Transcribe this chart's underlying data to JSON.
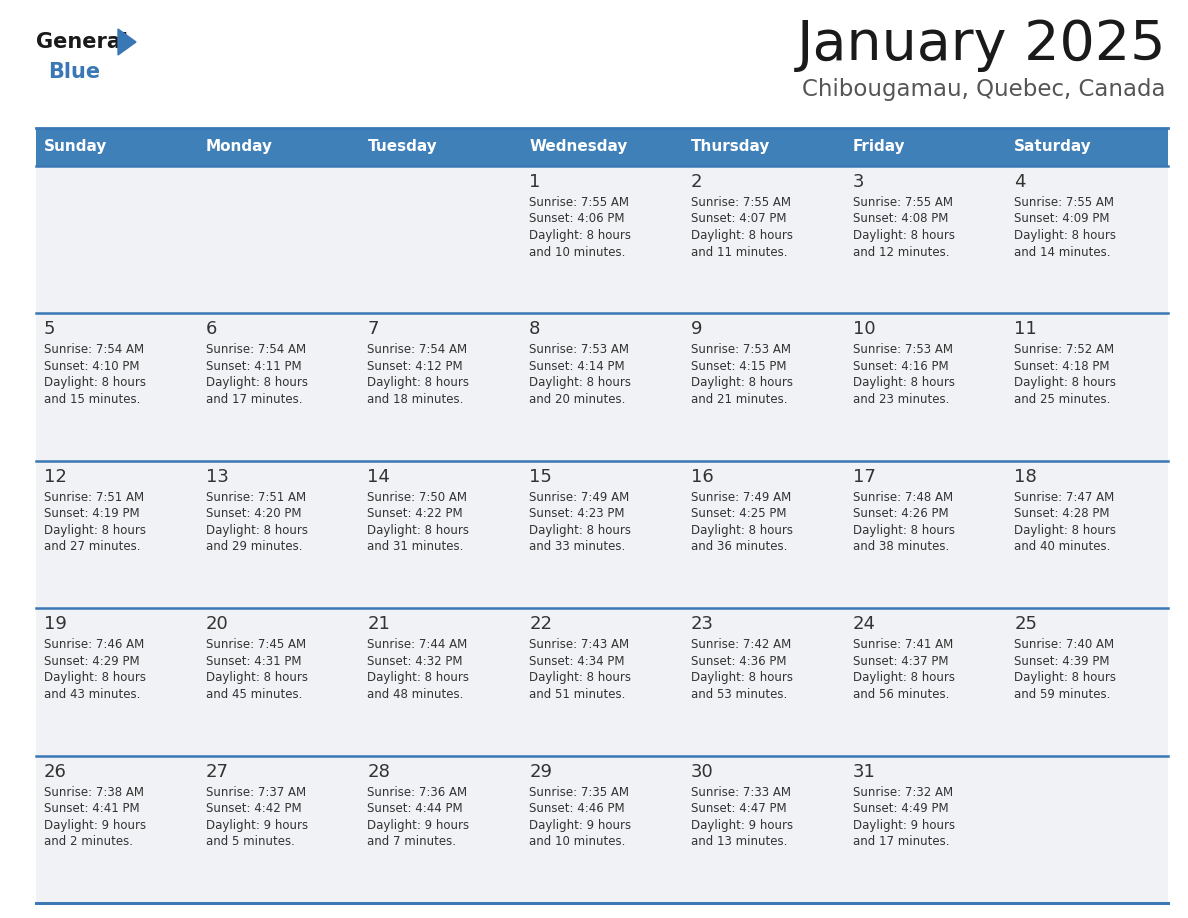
{
  "title": "January 2025",
  "subtitle": "Chibougamau, Quebec, Canada",
  "days_of_week": [
    "Sunday",
    "Monday",
    "Tuesday",
    "Wednesday",
    "Thursday",
    "Friday",
    "Saturday"
  ],
  "header_bg": "#4080b8",
  "header_text": "#ffffff",
  "cell_bg_filled": "#f0f2f5",
  "cell_bg_empty": "#ffffff",
  "border_color": "#3a78b5",
  "text_color": "#333333",
  "title_color": "#1a1a1a",
  "subtitle_color": "#555555",
  "logo_general_color": "#1a1a1a",
  "logo_blue_color": "#3a78b5",
  "logo_triangle_color": "#3a78b5",
  "calendar_data": [
    [
      null,
      null,
      null,
      {
        "day": 1,
        "sunrise": "7:55 AM",
        "sunset": "4:06 PM",
        "daylight": "8 hours and 10 minutes"
      },
      {
        "day": 2,
        "sunrise": "7:55 AM",
        "sunset": "4:07 PM",
        "daylight": "8 hours and 11 minutes"
      },
      {
        "day": 3,
        "sunrise": "7:55 AM",
        "sunset": "4:08 PM",
        "daylight": "8 hours and 12 minutes"
      },
      {
        "day": 4,
        "sunrise": "7:55 AM",
        "sunset": "4:09 PM",
        "daylight": "8 hours and 14 minutes"
      }
    ],
    [
      {
        "day": 5,
        "sunrise": "7:54 AM",
        "sunset": "4:10 PM",
        "daylight": "8 hours and 15 minutes"
      },
      {
        "day": 6,
        "sunrise": "7:54 AM",
        "sunset": "4:11 PM",
        "daylight": "8 hours and 17 minutes"
      },
      {
        "day": 7,
        "sunrise": "7:54 AM",
        "sunset": "4:12 PM",
        "daylight": "8 hours and 18 minutes"
      },
      {
        "day": 8,
        "sunrise": "7:53 AM",
        "sunset": "4:14 PM",
        "daylight": "8 hours and 20 minutes"
      },
      {
        "day": 9,
        "sunrise": "7:53 AM",
        "sunset": "4:15 PM",
        "daylight": "8 hours and 21 minutes"
      },
      {
        "day": 10,
        "sunrise": "7:53 AM",
        "sunset": "4:16 PM",
        "daylight": "8 hours and 23 minutes"
      },
      {
        "day": 11,
        "sunrise": "7:52 AM",
        "sunset": "4:18 PM",
        "daylight": "8 hours and 25 minutes"
      }
    ],
    [
      {
        "day": 12,
        "sunrise": "7:51 AM",
        "sunset": "4:19 PM",
        "daylight": "8 hours and 27 minutes"
      },
      {
        "day": 13,
        "sunrise": "7:51 AM",
        "sunset": "4:20 PM",
        "daylight": "8 hours and 29 minutes"
      },
      {
        "day": 14,
        "sunrise": "7:50 AM",
        "sunset": "4:22 PM",
        "daylight": "8 hours and 31 minutes"
      },
      {
        "day": 15,
        "sunrise": "7:49 AM",
        "sunset": "4:23 PM",
        "daylight": "8 hours and 33 minutes"
      },
      {
        "day": 16,
        "sunrise": "7:49 AM",
        "sunset": "4:25 PM",
        "daylight": "8 hours and 36 minutes"
      },
      {
        "day": 17,
        "sunrise": "7:48 AM",
        "sunset": "4:26 PM",
        "daylight": "8 hours and 38 minutes"
      },
      {
        "day": 18,
        "sunrise": "7:47 AM",
        "sunset": "4:28 PM",
        "daylight": "8 hours and 40 minutes"
      }
    ],
    [
      {
        "day": 19,
        "sunrise": "7:46 AM",
        "sunset": "4:29 PM",
        "daylight": "8 hours and 43 minutes"
      },
      {
        "day": 20,
        "sunrise": "7:45 AM",
        "sunset": "4:31 PM",
        "daylight": "8 hours and 45 minutes"
      },
      {
        "day": 21,
        "sunrise": "7:44 AM",
        "sunset": "4:32 PM",
        "daylight": "8 hours and 48 minutes"
      },
      {
        "day": 22,
        "sunrise": "7:43 AM",
        "sunset": "4:34 PM",
        "daylight": "8 hours and 51 minutes"
      },
      {
        "day": 23,
        "sunrise": "7:42 AM",
        "sunset": "4:36 PM",
        "daylight": "8 hours and 53 minutes"
      },
      {
        "day": 24,
        "sunrise": "7:41 AM",
        "sunset": "4:37 PM",
        "daylight": "8 hours and 56 minutes"
      },
      {
        "day": 25,
        "sunrise": "7:40 AM",
        "sunset": "4:39 PM",
        "daylight": "8 hours and 59 minutes"
      }
    ],
    [
      {
        "day": 26,
        "sunrise": "7:38 AM",
        "sunset": "4:41 PM",
        "daylight": "9 hours and 2 minutes"
      },
      {
        "day": 27,
        "sunrise": "7:37 AM",
        "sunset": "4:42 PM",
        "daylight": "9 hours and 5 minutes"
      },
      {
        "day": 28,
        "sunrise": "7:36 AM",
        "sunset": "4:44 PM",
        "daylight": "9 hours and 7 minutes"
      },
      {
        "day": 29,
        "sunrise": "7:35 AM",
        "sunset": "4:46 PM",
        "daylight": "9 hours and 10 minutes"
      },
      {
        "day": 30,
        "sunrise": "7:33 AM",
        "sunset": "4:47 PM",
        "daylight": "9 hours and 13 minutes"
      },
      {
        "day": 31,
        "sunrise": "7:32 AM",
        "sunset": "4:49 PM",
        "daylight": "9 hours and 17 minutes"
      },
      null
    ]
  ]
}
